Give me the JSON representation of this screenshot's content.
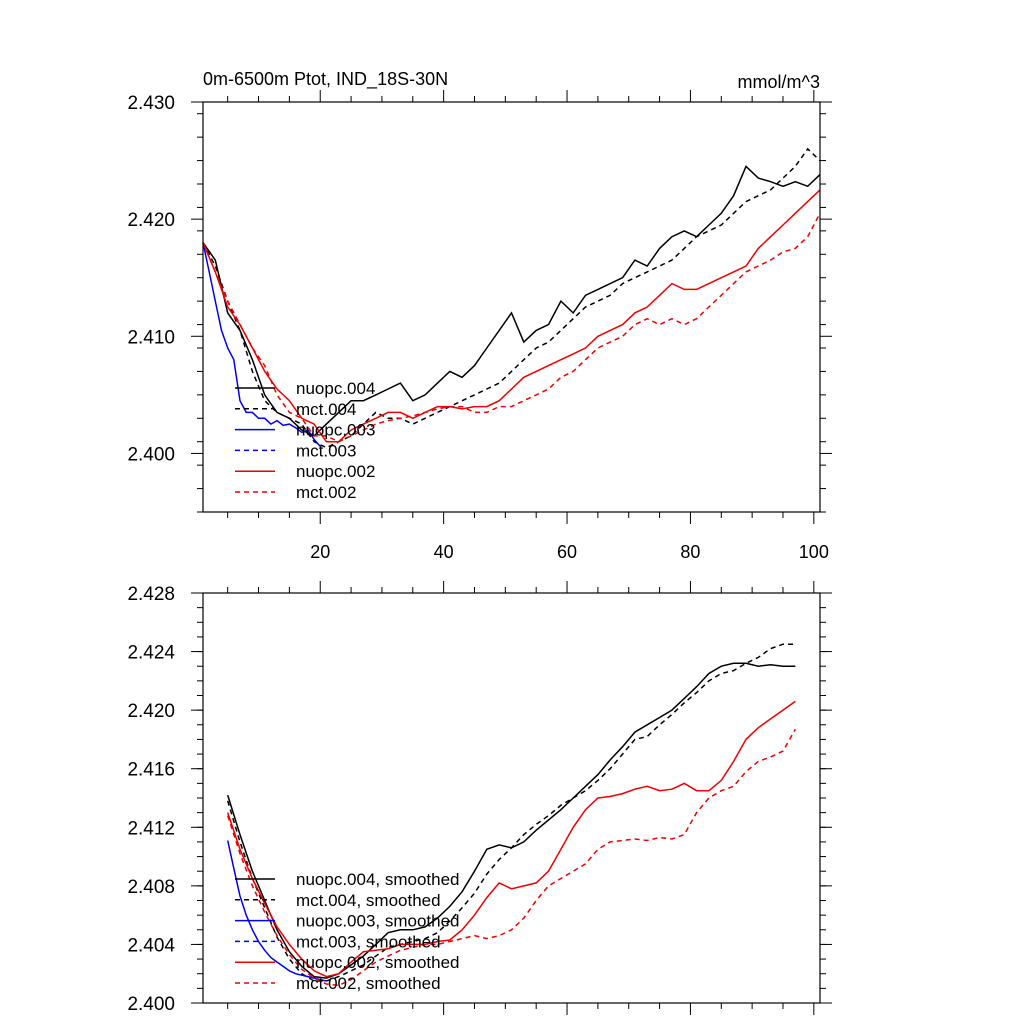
{
  "chart_data": [
    {
      "type": "line",
      "title": "0m-6500m Ptot, IND_18S-30N",
      "units": "mmol/m^3",
      "xlabel": "",
      "ylabel": "",
      "xlim": [
        1,
        101
      ],
      "ylim": [
        2.395,
        2.43
      ],
      "x_ticks": [
        20,
        40,
        60,
        80,
        100
      ],
      "x_tick_labels": [
        "20",
        "40",
        "60",
        "80",
        "100"
      ],
      "y_ticks": [
        2.4,
        2.41,
        2.42,
        2.43
      ],
      "y_tick_labels": [
        "2.400",
        "2.410",
        "2.420",
        "2.430"
      ],
      "legend_position": "bottom-left",
      "series": [
        {
          "name": "nuopc.004",
          "color": "#000000",
          "dash": "solid",
          "x": [
            1,
            3,
            5,
            7,
            9,
            11,
            13,
            15,
            17,
            19,
            21,
            23,
            25,
            27,
            29,
            31,
            33,
            35,
            37,
            39,
            41,
            43,
            45,
            47,
            49,
            51,
            53,
            55,
            57,
            59,
            61,
            63,
            65,
            67,
            69,
            71,
            73,
            75,
            77,
            79,
            81,
            83,
            85,
            87,
            89,
            91,
            93,
            95,
            97,
            99,
            101
          ],
          "values": [
            2.418,
            2.4165,
            2.412,
            2.4105,
            2.408,
            2.405,
            2.4035,
            2.403,
            2.402,
            2.4015,
            2.4025,
            2.4035,
            2.4045,
            2.4045,
            2.405,
            2.4055,
            2.406,
            2.4045,
            2.405,
            2.406,
            2.407,
            2.4065,
            2.4075,
            2.409,
            2.4105,
            2.412,
            2.4095,
            2.4105,
            2.411,
            2.413,
            2.412,
            2.4135,
            2.414,
            2.4145,
            2.415,
            2.4165,
            2.416,
            2.4175,
            2.4185,
            2.419,
            2.4185,
            2.4195,
            2.4205,
            2.422,
            2.4245,
            2.4235,
            2.4232,
            2.4228,
            2.4232,
            2.4228,
            2.4238
          ]
        },
        {
          "name": "mct.004",
          "color": "#000000",
          "dash": "dashed",
          "x": [
            1,
            3,
            5,
            7,
            9,
            11,
            13,
            15,
            17,
            19,
            21,
            23,
            25,
            27,
            29,
            31,
            33,
            35,
            37,
            39,
            41,
            43,
            45,
            47,
            49,
            51,
            53,
            55,
            57,
            59,
            61,
            63,
            65,
            67,
            69,
            71,
            73,
            75,
            77,
            79,
            81,
            83,
            85,
            87,
            89,
            91,
            93,
            95,
            97,
            99,
            101
          ],
          "values": [
            2.418,
            2.416,
            2.413,
            2.4105,
            2.407,
            2.4045,
            2.4035,
            2.403,
            2.4025,
            2.401,
            2.4005,
            2.401,
            2.4015,
            2.4025,
            2.4035,
            2.403,
            2.403,
            2.4025,
            2.403,
            2.4035,
            2.404,
            2.4045,
            2.405,
            2.4055,
            2.406,
            2.407,
            2.408,
            2.409,
            2.4095,
            2.4105,
            2.4115,
            2.4125,
            2.413,
            2.4135,
            2.4145,
            2.415,
            2.4155,
            2.416,
            2.4165,
            2.4175,
            2.4185,
            2.419,
            2.4195,
            2.4205,
            2.4215,
            2.422,
            2.4225,
            2.4235,
            2.4245,
            2.426,
            2.425
          ]
        },
        {
          "name": "nuopc.003",
          "color": "#0000ee",
          "dash": "solid",
          "x": [
            1,
            2,
            3,
            4,
            5,
            6,
            7,
            8,
            9,
            10,
            11,
            12,
            13,
            14,
            15,
            16,
            17,
            18,
            19,
            20
          ],
          "values": [
            2.418,
            2.4155,
            2.413,
            2.4105,
            2.409,
            2.408,
            2.4045,
            2.4035,
            2.4035,
            2.403,
            2.403,
            2.4025,
            2.4028,
            2.4024,
            2.4025,
            2.4022,
            2.4018,
            2.402,
            2.4012,
            2.4006
          ]
        },
        {
          "name": "mct.003",
          "color": "#0000ee",
          "dash": "dashed",
          "x": [],
          "values": []
        },
        {
          "name": "nuopc.002",
          "color": "#ee0000",
          "dash": "solid",
          "x": [
            1,
            3,
            5,
            7,
            9,
            11,
            13,
            15,
            17,
            19,
            21,
            23,
            25,
            27,
            29,
            31,
            33,
            35,
            37,
            39,
            41,
            43,
            45,
            47,
            49,
            51,
            53,
            55,
            57,
            59,
            61,
            63,
            65,
            67,
            69,
            71,
            73,
            75,
            77,
            79,
            81,
            83,
            85,
            87,
            89,
            91,
            93,
            95,
            97,
            99,
            101
          ],
          "values": [
            2.418,
            2.4155,
            2.4125,
            2.411,
            2.409,
            2.407,
            2.4055,
            2.4045,
            2.403,
            2.4025,
            2.401,
            2.401,
            2.402,
            2.4025,
            2.403,
            2.4035,
            2.4035,
            2.403,
            2.4035,
            2.404,
            2.404,
            2.4038,
            2.404,
            2.404,
            2.4045,
            2.4055,
            2.4065,
            2.407,
            2.4075,
            2.408,
            2.4085,
            2.409,
            2.41,
            2.4105,
            2.411,
            2.412,
            2.4125,
            2.4135,
            2.4145,
            2.414,
            2.414,
            2.4145,
            2.415,
            2.4155,
            2.416,
            2.4175,
            2.4185,
            2.4195,
            2.4205,
            2.4215,
            2.4225
          ]
        },
        {
          "name": "mct.002",
          "color": "#ee0000",
          "dash": "dashed",
          "x": [
            1,
            3,
            5,
            7,
            9,
            11,
            13,
            15,
            17,
            19,
            21,
            23,
            25,
            27,
            29,
            31,
            33,
            35,
            37,
            39,
            41,
            43,
            45,
            47,
            49,
            51,
            53,
            55,
            57,
            59,
            61,
            63,
            65,
            67,
            69,
            71,
            73,
            75,
            77,
            79,
            81,
            83,
            85,
            87,
            89,
            91,
            93,
            95,
            97,
            99,
            101
          ],
          "values": [
            2.418,
            2.4155,
            2.413,
            2.411,
            2.409,
            2.4075,
            2.405,
            2.4035,
            2.403,
            2.4015,
            2.4015,
            2.401,
            2.4015,
            2.402,
            2.4025,
            2.4028,
            2.403,
            2.4032,
            2.4035,
            2.4038,
            2.404,
            2.404,
            2.4035,
            2.4035,
            2.404,
            2.404,
            2.4045,
            2.405,
            2.4055,
            2.4065,
            2.407,
            2.408,
            2.409,
            2.4095,
            2.41,
            2.411,
            2.4115,
            2.411,
            2.4115,
            2.411,
            2.4115,
            2.4125,
            2.4135,
            2.4145,
            2.4155,
            2.416,
            2.4165,
            2.4172,
            2.4175,
            2.4185,
            2.4205
          ]
        }
      ]
    },
    {
      "type": "line",
      "title": "",
      "units": "",
      "xlabel": "",
      "ylabel": "",
      "xlim": [
        1,
        101
      ],
      "ylim": [
        2.4,
        2.428
      ],
      "x_ticks": [
        20,
        40,
        60,
        80,
        100
      ],
      "x_tick_labels": [
        "",
        "",
        "",
        "",
        ""
      ],
      "y_ticks": [
        2.4,
        2.404,
        2.408,
        2.412,
        2.416,
        2.42,
        2.424,
        2.428
      ],
      "y_tick_labels": [
        "2.400",
        "2.404",
        "2.408",
        "2.412",
        "2.416",
        "2.420",
        "2.424",
        "2.428"
      ],
      "legend_position": "bottom-left",
      "series": [
        {
          "name": "nuopc.004, smoothed",
          "color": "#000000",
          "dash": "solid",
          "x": [
            5,
            7,
            9,
            11,
            13,
            15,
            17,
            19,
            21,
            23,
            25,
            27,
            29,
            31,
            33,
            35,
            37,
            39,
            41,
            43,
            45,
            47,
            49,
            51,
            53,
            55,
            57,
            59,
            61,
            63,
            65,
            67,
            69,
            71,
            73,
            75,
            77,
            79,
            81,
            83,
            85,
            87,
            89,
            91,
            93,
            95,
            97
          ],
          "values": [
            2.4142,
            2.4115,
            2.409,
            2.407,
            2.405,
            2.4035,
            2.4025,
            2.4018,
            2.4017,
            2.402,
            2.4026,
            2.4032,
            2.404,
            2.4048,
            2.405,
            2.405,
            2.4052,
            2.4058,
            2.4066,
            2.4076,
            2.409,
            2.4105,
            2.4108,
            2.4106,
            2.411,
            2.4118,
            2.4125,
            2.4132,
            2.414,
            2.4148,
            2.4156,
            2.4166,
            2.4175,
            2.4185,
            2.419,
            2.4195,
            2.42,
            2.4208,
            2.4216,
            2.4225,
            2.423,
            2.4232,
            2.4232,
            2.423,
            2.4231,
            2.423,
            2.423
          ]
        },
        {
          "name": "mct.004, smoothed",
          "color": "#000000",
          "dash": "dashed",
          "x": [
            5,
            7,
            9,
            11,
            13,
            15,
            17,
            19,
            21,
            23,
            25,
            27,
            29,
            31,
            33,
            35,
            37,
            39,
            41,
            43,
            45,
            47,
            49,
            51,
            53,
            55,
            57,
            59,
            61,
            63,
            65,
            67,
            69,
            71,
            73,
            75,
            77,
            79,
            81,
            83,
            85,
            87,
            89,
            91,
            93,
            95,
            97
          ],
          "values": [
            2.4138,
            2.411,
            2.4085,
            2.4065,
            2.4045,
            2.403,
            2.402,
            2.4015,
            2.4015,
            2.4018,
            2.4022,
            2.4026,
            2.4032,
            2.4038,
            2.404,
            2.4042,
            2.4044,
            2.4048,
            2.4056,
            2.4065,
            2.4075,
            2.4088,
            2.4098,
            2.4106,
            2.4115,
            2.4122,
            2.4128,
            2.4135,
            2.414,
            2.4145,
            2.4152,
            2.416,
            2.417,
            2.418,
            2.4182,
            2.419,
            2.4197,
            2.4205,
            2.4212,
            2.422,
            2.4225,
            2.4227,
            2.4232,
            2.4236,
            2.4242,
            2.4245,
            2.4245
          ]
        },
        {
          "name": "nuopc.003, smoothed",
          "color": "#0000ee",
          "dash": "solid",
          "x": [
            5,
            6,
            7,
            8,
            9,
            10,
            11,
            12,
            13,
            14,
            15,
            16,
            17,
            18,
            19,
            20,
            21
          ],
          "values": [
            2.4111,
            2.4092,
            2.4073,
            2.406,
            2.405,
            2.4042,
            2.4036,
            2.4031,
            2.4028,
            2.4025,
            2.4022,
            2.402,
            2.4019,
            2.4018,
            2.4017,
            2.4016,
            2.4015
          ]
        },
        {
          "name": "mct.003, smoothed",
          "color": "#0000ee",
          "dash": "dashed",
          "x": [],
          "values": []
        },
        {
          "name": "nuopc.002, smoothed",
          "color": "#ee0000",
          "dash": "solid",
          "x": [
            5,
            7,
            9,
            11,
            13,
            15,
            17,
            19,
            21,
            23,
            25,
            27,
            29,
            31,
            33,
            35,
            37,
            39,
            41,
            43,
            45,
            47,
            49,
            51,
            53,
            55,
            57,
            59,
            61,
            63,
            65,
            67,
            69,
            71,
            73,
            75,
            77,
            79,
            81,
            83,
            85,
            87,
            89,
            91,
            93,
            95,
            97
          ],
          "values": [
            2.413,
            2.4105,
            2.4085,
            2.4068,
            2.4052,
            2.404,
            2.403,
            2.4022,
            2.4018,
            2.402,
            2.4028,
            2.4035,
            2.4036,
            2.4037,
            2.404,
            2.404,
            2.404,
            2.4042,
            2.4043,
            2.405,
            2.406,
            2.4072,
            2.4082,
            2.4078,
            2.408,
            2.4082,
            2.409,
            2.4105,
            2.412,
            2.4132,
            2.414,
            2.4141,
            2.4143,
            2.4146,
            2.4148,
            2.4145,
            2.4146,
            2.415,
            2.4145,
            2.4145,
            2.4152,
            2.4165,
            2.418,
            2.4188,
            2.4194,
            2.42,
            2.4206
          ]
        },
        {
          "name": "mct.002, smoothed",
          "color": "#ee0000",
          "dash": "dashed",
          "x": [
            5,
            7,
            9,
            11,
            13,
            15,
            17,
            19,
            21,
            23,
            25,
            27,
            29,
            31,
            33,
            35,
            37,
            39,
            41,
            43,
            45,
            47,
            49,
            51,
            53,
            55,
            57,
            59,
            61,
            63,
            65,
            67,
            69,
            71,
            73,
            75,
            77,
            79,
            81,
            83,
            85,
            87,
            89,
            91,
            93,
            95,
            97
          ],
          "values": [
            2.4128,
            2.4102,
            2.408,
            2.4062,
            2.4046,
            2.4033,
            2.4023,
            2.4017,
            2.4013,
            2.4012,
            2.4016,
            2.4022,
            2.4028,
            2.4032,
            2.4036,
            2.4038,
            2.404,
            2.404,
            2.4042,
            2.4044,
            2.4046,
            2.4044,
            2.4046,
            2.405,
            2.4058,
            2.407,
            2.408,
            2.4085,
            2.409,
            2.4095,
            2.4105,
            2.411,
            2.4111,
            2.4112,
            2.4111,
            2.4113,
            2.4112,
            2.4115,
            2.413,
            2.414,
            2.4145,
            2.4148,
            2.4158,
            2.4165,
            2.4168,
            2.4172,
            2.4187
          ]
        }
      ]
    }
  ]
}
